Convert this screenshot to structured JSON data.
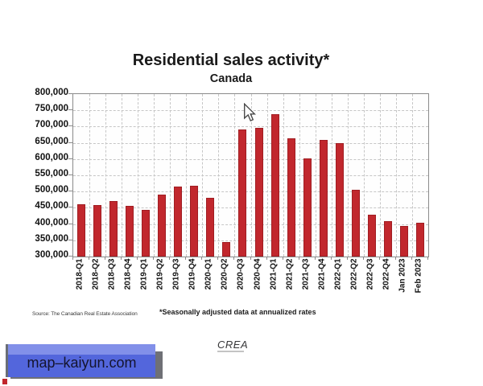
{
  "chart_data": {
    "type": "bar",
    "title": "Residential sales activity*",
    "subtitle": "Canada",
    "categories": [
      "2018-Q1",
      "2018-Q2",
      "2018-Q3",
      "2018-Q4",
      "2019-Q1",
      "2019-Q2",
      "2019-Q3",
      "2019-Q4",
      "2020-Q1",
      "2020-Q2",
      "2020-Q3",
      "2020-Q4",
      "2021-Q1",
      "2021-Q2",
      "2021-Q3",
      "2021-Q4",
      "2022-Q1",
      "2022-Q2",
      "2022-Q3",
      "2022-Q4",
      "Jan 2023",
      "Feb 2023"
    ],
    "values": [
      460000,
      458000,
      470000,
      457000,
      443000,
      490000,
      516000,
      518000,
      481000,
      345000,
      690000,
      695000,
      739000,
      665000,
      603000,
      658000,
      650000,
      505000,
      428000,
      410000,
      393000,
      403000
    ],
    "ylim": [
      300000,
      800000
    ],
    "ytick_step": 50000,
    "ytick_labels": [
      "800,000",
      "750,000",
      "700,000",
      "650,000",
      "600,000",
      "550,000",
      "500,000",
      "450,000",
      "400,000",
      "350,000",
      "300,000"
    ],
    "bar_color": "#c1272d",
    "grid": "dashed",
    "legend": "none",
    "footnote": "*Seasonally adjusted data at annualized rates",
    "source": "Source: The Canadian Real Estate Association",
    "logo_text": "CREA"
  },
  "watermark": {
    "banner_text": "map–kaiyun.com",
    "banner_color": "#5366dc",
    "corner_color": "#c1272d"
  }
}
